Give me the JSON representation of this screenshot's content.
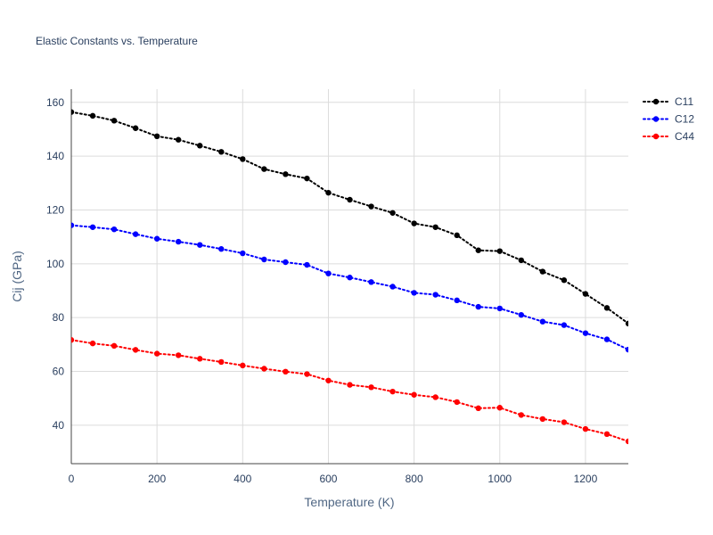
{
  "chart_data": {
    "type": "line",
    "title": "Elastic Constants vs. Temperature",
    "xlabel": "Temperature (K)",
    "ylabel": "Cij (GPa)",
    "xlim": [
      0,
      1300
    ],
    "ylim": [
      25.7,
      164.9
    ],
    "xticks": [
      0,
      200,
      400,
      600,
      800,
      1000,
      1200
    ],
    "yticks": [
      40,
      60,
      80,
      100,
      120,
      140,
      160
    ],
    "grid": true,
    "legend_position": "top-right",
    "line_style": "dotted with markers",
    "x": [
      0,
      50,
      100,
      150,
      200,
      250,
      300,
      350,
      400,
      450,
      500,
      550,
      600,
      650,
      700,
      750,
      800,
      850,
      900,
      950,
      1000,
      1050,
      1100,
      1150,
      1200,
      1250,
      1300
    ],
    "series": [
      {
        "name": "C11",
        "color": "#000000",
        "values": [
          156.4,
          155.0,
          153.2,
          150.4,
          147.4,
          146.1,
          143.9,
          141.6,
          138.9,
          135.2,
          133.3,
          131.7,
          126.4,
          123.8,
          121.3,
          118.9,
          115.0,
          113.6,
          110.6,
          105.0,
          104.7,
          101.3,
          97.1,
          93.9,
          88.8,
          83.6,
          77.8
        ]
      },
      {
        "name": "C12",
        "color": "#0000ff",
        "values": [
          114.3,
          113.6,
          112.8,
          111.0,
          109.3,
          108.2,
          107.0,
          105.5,
          103.9,
          101.6,
          100.6,
          99.6,
          96.4,
          94.9,
          93.2,
          91.5,
          89.2,
          88.5,
          86.4,
          84.0,
          83.4,
          81.0,
          78.5,
          77.2,
          74.2,
          71.9,
          68.1
        ]
      },
      {
        "name": "C44",
        "color": "#ff0000",
        "values": [
          71.7,
          70.4,
          69.5,
          68.0,
          66.6,
          66.0,
          64.7,
          63.5,
          62.2,
          61.0,
          59.9,
          59.0,
          56.6,
          55.0,
          54.1,
          52.5,
          51.3,
          50.4,
          48.6,
          46.3,
          46.5,
          43.8,
          42.3,
          41.1,
          38.6,
          36.7,
          34.0
        ]
      }
    ]
  }
}
